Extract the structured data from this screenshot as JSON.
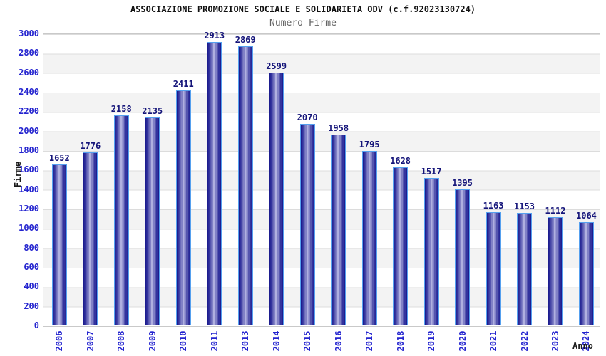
{
  "header": {
    "title": "ASSOCIAZIONE PROMOZIONE SOCIALE E SOLIDARIETA ODV (c.f.92023130724)",
    "subtitle": "Numero Firme"
  },
  "chart_data": {
    "type": "bar",
    "title": "ASSOCIAZIONE PROMOZIONE SOCIALE E SOLIDARIETA ODV (c.f.92023130724)",
    "subtitle": "Numero Firme",
    "categories": [
      "2006",
      "2007",
      "2008",
      "2009",
      "2010",
      "2011",
      "2013",
      "2014",
      "2015",
      "2016",
      "2017",
      "2018",
      "2019",
      "2020",
      "2021",
      "2022",
      "2023",
      "2024"
    ],
    "values": [
      1652,
      1776,
      2158,
      2135,
      2411,
      2913,
      2869,
      2599,
      2070,
      1958,
      1795,
      1628,
      1517,
      1395,
      1163,
      1153,
      1112,
      1064
    ],
    "xlabel": "Anno",
    "ylabel": "Firme",
    "ylim": [
      0,
      3000
    ],
    "ytick_step": 200,
    "grid": true,
    "legend": false,
    "colors": {
      "bar_edge": "#1d1d8f",
      "bar_center": "#b0b0e0",
      "bar_border": "#55a0ef",
      "value_label": "#15157a",
      "tick_label": "#2424cf",
      "band_gray": "#f3f3f3",
      "gridline": "#dcdcdc",
      "title": "#111111",
      "subtitle": "#636363"
    }
  }
}
